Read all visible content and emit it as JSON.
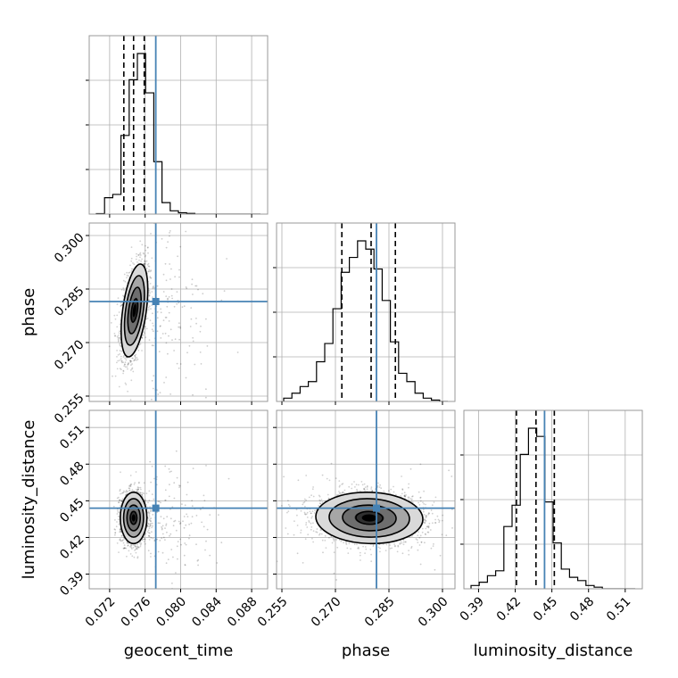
{
  "chart_data": {
    "type": "corner",
    "grid": true,
    "colors": {
      "truth": "#4682b4",
      "histogram": "#000000",
      "frame": "#000000",
      "grid": "#b0b0b0"
    },
    "parameters": [
      "geocent_time",
      "phase",
      "luminosity_distance"
    ],
    "truths": {
      "geocent_time": 0.0772,
      "phase": 0.2815,
      "luminosity_distance": 0.444
    },
    "axes": {
      "geocent_time": {
        "range": [
          0.0697,
          0.0898
        ],
        "ticks": [
          0.072,
          0.076,
          0.08,
          0.084,
          0.088
        ],
        "tick_labels": [
          "0.072",
          "0.076",
          "0.080",
          "0.084",
          "0.088"
        ]
      },
      "phase": {
        "range": [
          0.2535,
          0.3035
        ],
        "ticks": [
          0.255,
          0.27,
          0.285,
          0.3
        ],
        "tick_labels": [
          "0.255",
          "0.270",
          "0.285",
          "0.300"
        ]
      },
      "luminosity_distance": {
        "range": [
          0.378,
          0.524
        ],
        "ticks": [
          0.39,
          0.42,
          0.45,
          0.48,
          0.51
        ],
        "tick_labels": [
          "0.39",
          "0.42",
          "0.45",
          "0.48",
          "0.51"
        ]
      }
    },
    "marginals": {
      "geocent_time": {
        "bins": 20,
        "counts": [
          0.003,
          0.1,
          0.12,
          0.48,
          0.82,
          0.98,
          0.74,
          0.32,
          0.07,
          0.02,
          0.008,
          0.004,
          0,
          0,
          0,
          0,
          0,
          0,
          0,
          0
        ],
        "quantiles": [
          0.0736,
          0.0747,
          0.0759
        ]
      },
      "phase": {
        "bins": 20,
        "counts": [
          0.02,
          0.05,
          0.09,
          0.12,
          0.24,
          0.35,
          0.56,
          0.78,
          0.87,
          0.97,
          0.92,
          0.8,
          0.61,
          0.36,
          0.17,
          0.12,
          0.05,
          0.02,
          0.008,
          0
        ],
        "quantiles": [
          0.2718,
          0.28,
          0.2868
        ]
      },
      "luminosity_distance": {
        "bins": 20,
        "counts": [
          0.02,
          0.04,
          0.08,
          0.11,
          0.38,
          0.51,
          0.82,
          0.98,
          0.93,
          0.53,
          0.28,
          0.12,
          0.07,
          0.05,
          0.02,
          0.01,
          0,
          0,
          0,
          0
        ],
        "quantiles": [
          0.421,
          0.437,
          0.452
        ]
      }
    },
    "joints": [
      {
        "x": "geocent_time",
        "y": "phase",
        "mean": [
          0.0748,
          0.279
        ],
        "sigma": [
          0.00075,
          0.0065
        ],
        "rho": 0.45,
        "samples": 1800,
        "outliers": 140
      },
      {
        "x": "geocent_time",
        "y": "luminosity_distance",
        "mean": [
          0.0747,
          0.436
        ],
        "sigma": [
          0.00075,
          0.0105
        ],
        "rho": 0.0,
        "samples": 1800,
        "outliers": 140
      },
      {
        "x": "phase",
        "y": "luminosity_distance",
        "mean": [
          0.2795,
          0.436
        ],
        "sigma": [
          0.0075,
          0.0105
        ],
        "rho": -0.05,
        "samples": 2400,
        "outliers": 60
      }
    ],
    "contour_levels_sigma": [
      0.5,
      1.0,
      1.5,
      2.0
    ]
  }
}
